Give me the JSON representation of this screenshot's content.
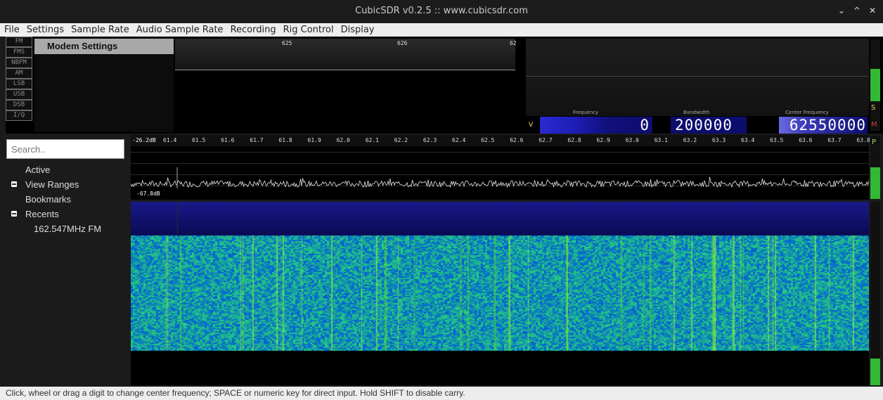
{
  "window": {
    "title": "CubicSDR v0.2.5 :: www.cubicsdr.com",
    "controls": [
      "⌄",
      "^",
      "✕"
    ]
  },
  "menu": [
    "File",
    "Settings",
    "Sample Rate",
    "Audio Sample Rate",
    "Recording",
    "Rig Control",
    "Display"
  ],
  "modes": [
    "FM",
    "FMS",
    "NBFM",
    "AM",
    "LSB",
    "USB",
    "DSB",
    "I/Q"
  ],
  "modem": {
    "header": "Modem Settings"
  },
  "scope": {
    "ticks": [
      "625",
      "626",
      "62"
    ]
  },
  "freq": {
    "v_label": "V",
    "frequency_label": "Frequency",
    "frequency_value": "0",
    "bandwidth_label": "Bandwidth",
    "bandwidth_value": "200000",
    "center_label": "Center Frequency",
    "center_value": "62550000",
    "meter_s": "S",
    "meter_m": "M"
  },
  "sidebar": {
    "search_placeholder": "Search..",
    "items": [
      {
        "label": "Active",
        "toggle": false,
        "indent": false
      },
      {
        "label": "View Ranges",
        "toggle": true,
        "indent": false
      },
      {
        "label": "Bookmarks",
        "toggle": false,
        "indent": false
      },
      {
        "label": "Recents",
        "toggle": true,
        "indent": false
      },
      {
        "label": "162.547MHz FM",
        "toggle": false,
        "indent": true
      }
    ]
  },
  "spectrum": {
    "db_top": "-26.2dB",
    "db_bottom": "-67.8dB",
    "ticks": [
      "61.4",
      "61.5",
      "61.6",
      "61.7",
      "61.8",
      "61.9",
      "62.0",
      "62.1",
      "62.2",
      "62.3",
      "62.4",
      "62.5",
      "62.6",
      "62.7",
      "62.8",
      "62.9",
      "63.0",
      "63.1",
      "63.2",
      "63.3",
      "63.4",
      "63.5",
      "63.6",
      "63.7",
      "63.8"
    ],
    "peak_label": "P"
  },
  "status": {
    "text": "Click, wheel or drag a digit to change center frequency; SPACE or numeric key for direct input.  Hold SHIFT to disable carry."
  },
  "colors": {
    "wf_low": "#0a1a9a",
    "wf_high": "#4ad22a",
    "meter": "#33b833",
    "digit_bg": "#0d0d6e"
  }
}
